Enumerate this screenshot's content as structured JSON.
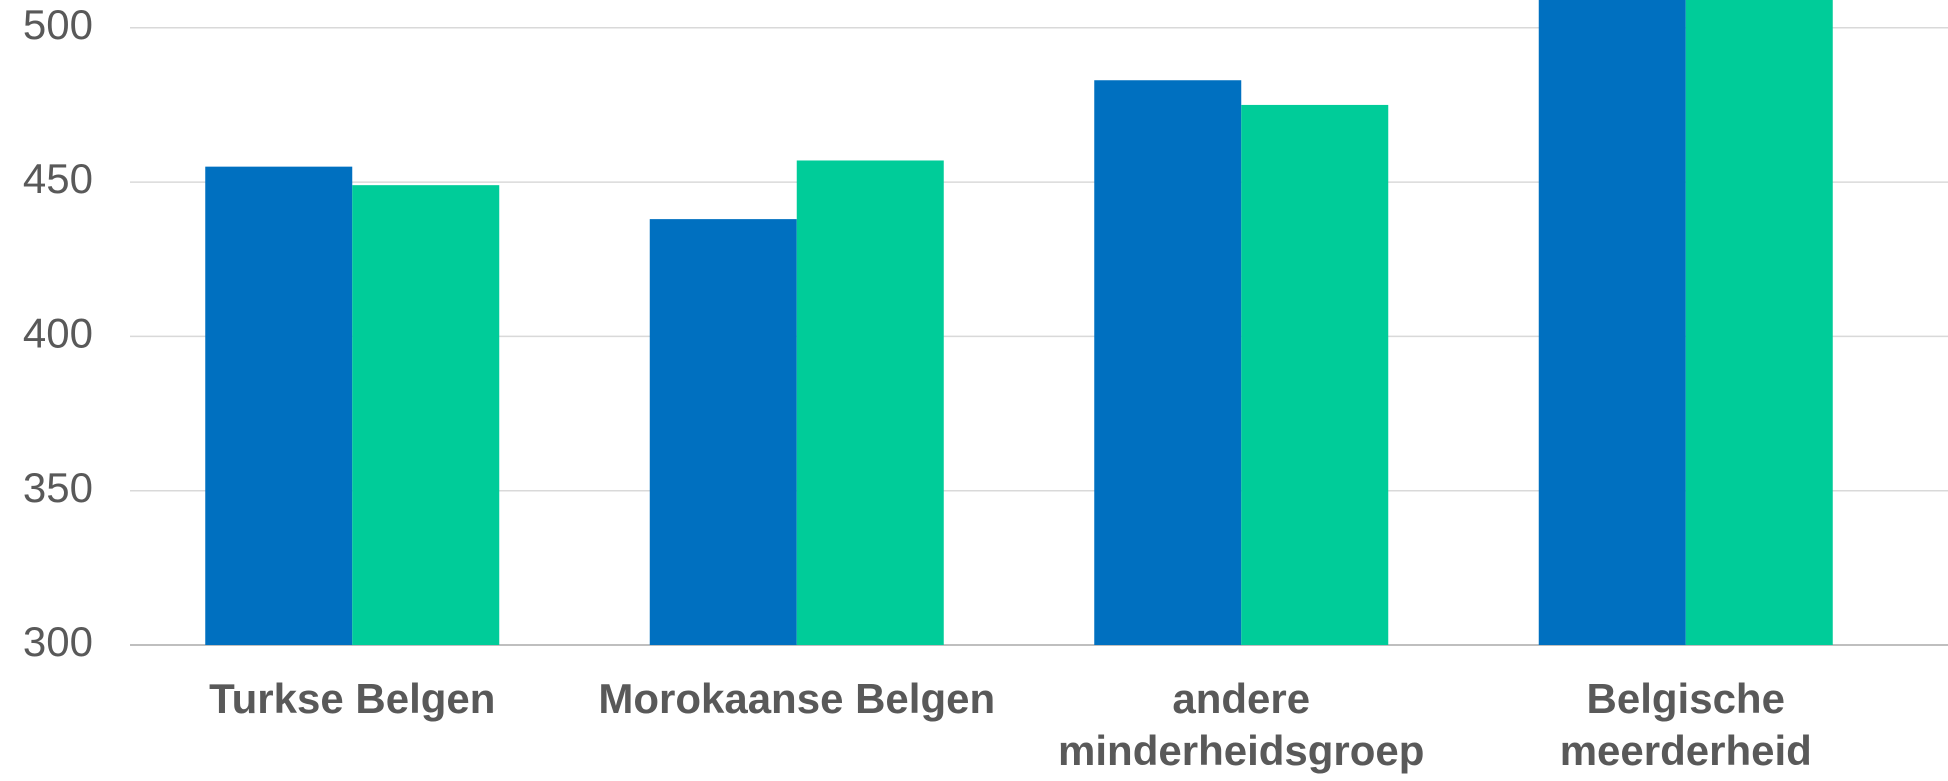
{
  "chart_data": {
    "type": "bar",
    "categories": [
      "Turkse Belgen",
      "Morokaanse Belgen",
      "andere minderheidsgroep",
      "Belgische meerderheid"
    ],
    "series": [
      {
        "color": "#0070c0",
        "values": [
          455,
          438,
          483,
          520
        ]
      },
      {
        "color": "#00cc99",
        "values": [
          449,
          457,
          475,
          520
        ]
      }
    ],
    "ylim": [
      300,
      509
    ],
    "yticks": [
      300,
      350,
      400,
      450,
      500
    ],
    "grid": true
  }
}
